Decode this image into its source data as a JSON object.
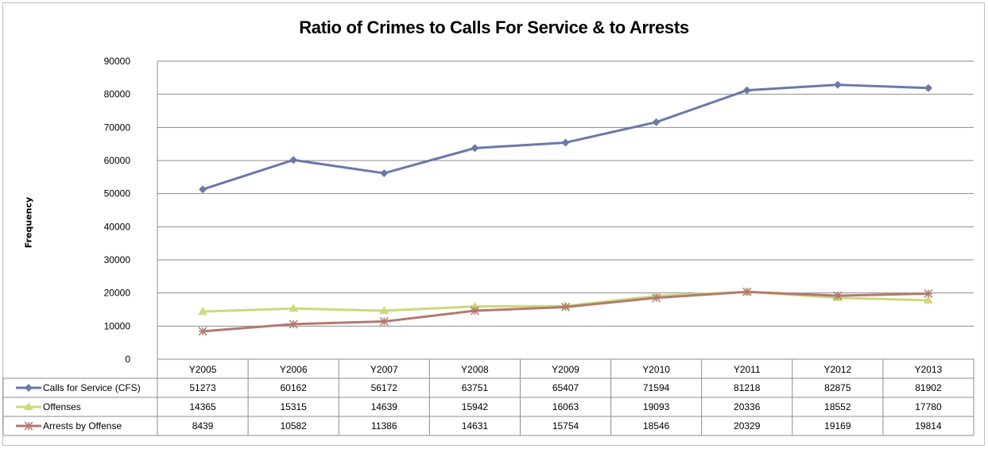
{
  "chart_data": {
    "type": "line",
    "title": "Ratio of Crimes to Calls For Service & to Arrests",
    "ylabel": "Frequency",
    "xlabel": "",
    "ylim": [
      0,
      90000
    ],
    "yticks": [
      0,
      10000,
      20000,
      30000,
      40000,
      50000,
      60000,
      70000,
      80000,
      90000
    ],
    "grid": true,
    "legend": "data-table-left",
    "categories": [
      "Y2005",
      "Y2006",
      "Y2007",
      "Y2008",
      "Y2009",
      "Y2010",
      "Y2011",
      "Y2012",
      "Y2013"
    ],
    "series": [
      {
        "name": "Calls for Service (CFS)",
        "color": "#6a79a8",
        "marker": "diamond",
        "values": [
          51273,
          60162,
          56172,
          63751,
          65407,
          71594,
          81218,
          82875,
          81902
        ]
      },
      {
        "name": "Offenses",
        "color": "#cdd97a",
        "marker": "triangle",
        "values": [
          14365,
          15315,
          14639,
          15942,
          16063,
          19093,
          20336,
          18552,
          17780
        ]
      },
      {
        "name": "Arrests by Offense",
        "color": "#b27a70",
        "marker": "star",
        "values": [
          8439,
          10582,
          11386,
          14631,
          15754,
          18546,
          20329,
          19169,
          19814
        ]
      }
    ]
  }
}
